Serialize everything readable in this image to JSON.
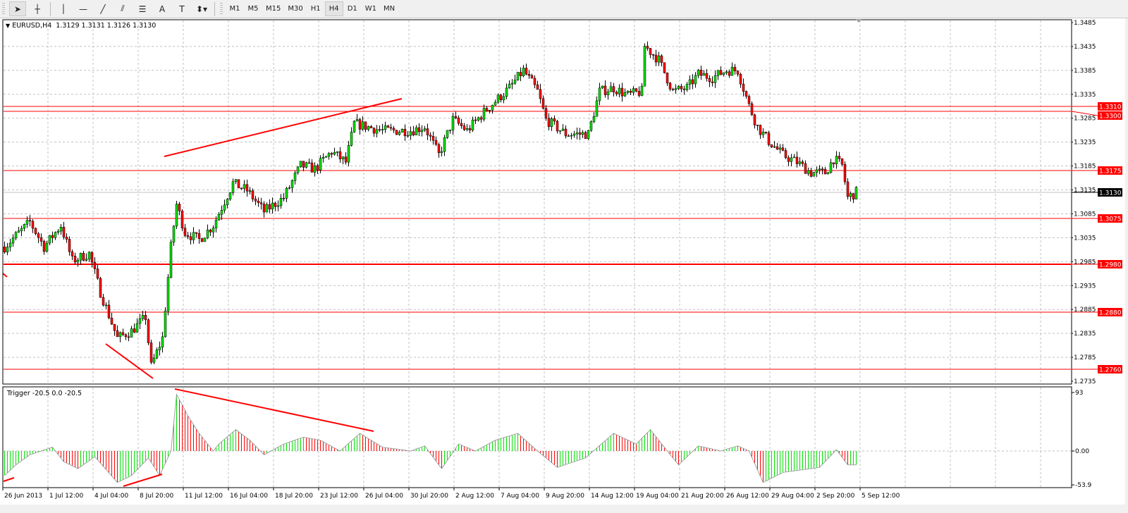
{
  "toolbar": {
    "tools": [
      {
        "name": "cursor-arrow",
        "glyph": "➤",
        "active": true
      },
      {
        "name": "crosshair",
        "glyph": "┼",
        "active": false
      },
      {
        "name": "vertical-line",
        "glyph": "│",
        "active": false
      },
      {
        "name": "horizontal-line",
        "glyph": "—",
        "active": false
      },
      {
        "name": "trendline",
        "glyph": "╱",
        "active": false
      },
      {
        "name": "equidistant-channel",
        "glyph": "⫽",
        "active": false
      },
      {
        "name": "fibonacci-retracement",
        "glyph": "☰",
        "active": false
      },
      {
        "name": "text",
        "glyph": "A",
        "active": false
      },
      {
        "name": "text-label",
        "glyph": "T",
        "active": false
      },
      {
        "name": "arrows-dropdown",
        "glyph": "⬍▾",
        "active": false
      }
    ],
    "timeframes": [
      "M1",
      "M5",
      "M15",
      "M30",
      "H1",
      "H4",
      "D1",
      "W1",
      "MN"
    ],
    "active_timeframe": "H4"
  },
  "chart": {
    "header": "EURUSD,H4  1.3129 1.3131 1.3126 1.3130",
    "indicator_label": "Trigger -20.5 0.0 -20.5",
    "price_ticks": [
      "1.3485",
      "1.3435",
      "1.3385",
      "1.3335",
      "1.3285",
      "1.3235",
      "1.3185",
      "1.3135",
      "1.3085",
      "1.3035",
      "1.2985",
      "1.2935",
      "1.2885",
      "1.2835",
      "1.2785",
      "1.2735"
    ],
    "levels": [
      "1.3310",
      "1.3300",
      "1.3175",
      "1.3075",
      "1.2980",
      "1.2880",
      "1.2760"
    ],
    "current_price": "1.3130",
    "indicator_ticks": [
      "93",
      "0.00",
      "-53.9"
    ],
    "time_labels": [
      "26 Jun 2013",
      "1 Jul 12:00",
      "4 Jul 04:00",
      "8 Jul 20:00",
      "11 Jul 12:00",
      "16 Jul 04:00",
      "18 Jul 20:00",
      "23 Jul 12:00",
      "26 Jul 04:00",
      "30 Jul 20:00",
      "2 Aug 12:00",
      "7 Aug 04:00",
      "9 Aug 20:00",
      "14 Aug 12:00",
      "19 Aug 04:00",
      "21 Aug 20:00",
      "26 Aug 12:00",
      "29 Aug 04:00",
      "2 Sep 20:00",
      "5 Sep 12:00"
    ],
    "colors": {
      "bull": "#00e000",
      "bear": "#ff0000",
      "level": "#ff0000",
      "trendline": "#ff0000",
      "indicator_line": "#a0a0a0",
      "grid": "#c0c0c0"
    }
  },
  "chart_data": {
    "type": "candlestick",
    "symbol": "EURUSD",
    "timeframe": "H4",
    "ylim": [
      1.2735,
      1.3485
    ],
    "indicator_ylim": [
      -53.9,
      93
    ],
    "price_keypoints_bar_close": [
      [
        0,
        1.3016
      ],
      [
        9,
        1.3068
      ],
      [
        14,
        1.3016
      ],
      [
        20,
        1.3061
      ],
      [
        24,
        1.2987
      ],
      [
        30,
        1.3002
      ],
      [
        34,
        1.2921
      ],
      [
        40,
        1.2825
      ],
      [
        45,
        1.284
      ],
      [
        50,
        1.2869
      ],
      [
        52,
        1.2766
      ],
      [
        56,
        1.2825
      ],
      [
        59,
        1.3016
      ],
      [
        61,
        1.3105
      ],
      [
        64,
        1.3046
      ],
      [
        69,
        1.3031
      ],
      [
        74,
        1.3061
      ],
      [
        81,
        1.3149
      ],
      [
        86,
        1.3134
      ],
      [
        92,
        1.309
      ],
      [
        99,
        1.3119
      ],
      [
        105,
        1.3186
      ],
      [
        110,
        1.3179
      ],
      [
        116,
        1.3215
      ],
      [
        121,
        1.3193
      ],
      [
        124,
        1.3274
      ],
      [
        134,
        1.3259
      ],
      [
        144,
        1.3259
      ],
      [
        149,
        1.3267
      ],
      [
        154,
        1.3208
      ],
      [
        159,
        1.3282
      ],
      [
        164,
        1.3259
      ],
      [
        171,
        1.3304
      ],
      [
        179,
        1.3348
      ],
      [
        184,
        1.3385
      ],
      [
        189,
        1.3341
      ],
      [
        192,
        1.3282
      ],
      [
        199,
        1.3252
      ],
      [
        207,
        1.3252
      ],
      [
        211,
        1.3341
      ],
      [
        216,
        1.3348
      ],
      [
        221,
        1.3333
      ],
      [
        226,
        1.3341
      ],
      [
        227,
        1.3436
      ],
      [
        232,
        1.3407
      ],
      [
        237,
        1.3341
      ],
      [
        242,
        1.3348
      ],
      [
        246,
        1.3377
      ],
      [
        251,
        1.337
      ],
      [
        256,
        1.3385
      ],
      [
        260,
        1.3385
      ],
      [
        264,
        1.3311
      ],
      [
        267,
        1.3267
      ],
      [
        271,
        1.3237
      ],
      [
        276,
        1.3208
      ],
      [
        281,
        1.3193
      ],
      [
        286,
        1.3171
      ],
      [
        291,
        1.3171
      ],
      [
        294,
        1.32
      ],
      [
        297,
        1.3186
      ],
      [
        299,
        1.3119
      ],
      [
        302,
        1.313
      ]
    ],
    "indicator_keypoints_bar_value": [
      [
        0,
        -39
      ],
      [
        4,
        -22
      ],
      [
        9,
        -6
      ],
      [
        17,
        6
      ],
      [
        21,
        -17
      ],
      [
        26,
        -28
      ],
      [
        32,
        -9
      ],
      [
        40,
        -50
      ],
      [
        45,
        -39
      ],
      [
        51,
        -11
      ],
      [
        55,
        -39
      ],
      [
        59,
        0
      ],
      [
        61,
        90
      ],
      [
        65,
        56
      ],
      [
        69,
        28
      ],
      [
        74,
        0
      ],
      [
        76,
        11
      ],
      [
        82,
        34
      ],
      [
        87,
        17
      ],
      [
        92,
        -6
      ],
      [
        99,
        11
      ],
      [
        106,
        22
      ],
      [
        112,
        17
      ],
      [
        119,
        0
      ],
      [
        126,
        28
      ],
      [
        134,
        6
      ],
      [
        144,
        0
      ],
      [
        149,
        8
      ],
      [
        155,
        -28
      ],
      [
        161,
        11
      ],
      [
        167,
        0
      ],
      [
        174,
        17
      ],
      [
        182,
        28
      ],
      [
        189,
        0
      ],
      [
        196,
        -26
      ],
      [
        206,
        -11
      ],
      [
        216,
        28
      ],
      [
        224,
        11
      ],
      [
        229,
        34
      ],
      [
        235,
        0
      ],
      [
        239,
        -22
      ],
      [
        246,
        8
      ],
      [
        254,
        0
      ],
      [
        260,
        8
      ],
      [
        264,
        0
      ],
      [
        269,
        -50
      ],
      [
        276,
        -34
      ],
      [
        289,
        -26
      ],
      [
        295,
        2
      ],
      [
        299,
        -22
      ],
      [
        302,
        -22
      ]
    ]
  }
}
